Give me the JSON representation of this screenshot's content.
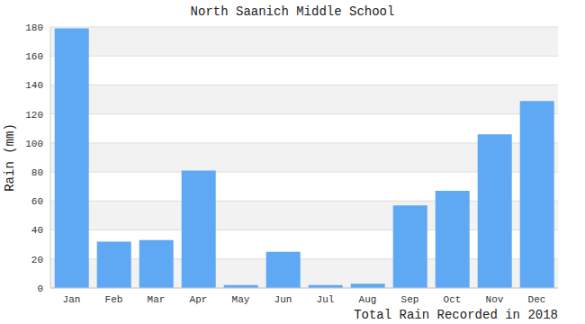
{
  "chart_data": {
    "type": "bar",
    "title": "North Saanich Middle School",
    "x_label": "Total Rain Recorded in 2018",
    "y_label": "Rain (mm)",
    "categories": [
      "Jan",
      "Feb",
      "Mar",
      "Apr",
      "May",
      "Jun",
      "Jul",
      "Aug",
      "Sep",
      "Oct",
      "Nov",
      "Dec"
    ],
    "values": [
      179,
      32,
      33,
      81,
      2,
      25,
      2,
      3,
      57,
      67,
      106,
      129
    ],
    "color": "#5ea8f4",
    "ylim": [
      0,
      180
    ],
    "yticks": [
      0,
      20,
      40,
      60,
      80,
      100,
      120,
      140,
      160,
      180
    ],
    "grid": true
  }
}
